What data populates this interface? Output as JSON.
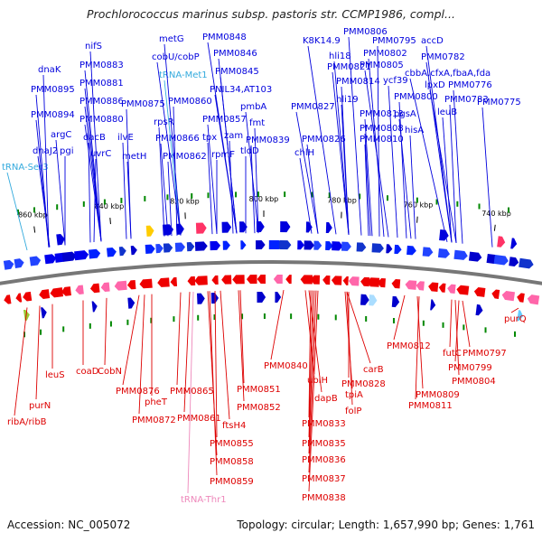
{
  "title": "Prochlorococcus marinus subsp. pastoris str. CCMP1986, compl...",
  "accession": "Accession: NC_005072",
  "summary": "Topology: circular; Length: 1,657,990 bp; Genes: 1,761",
  "colors": {
    "forward": "#0000dd",
    "reverse": "#dd0000",
    "trna": "#33aadd",
    "trna_rev": "#ee88bb",
    "ring": "#777777",
    "feature": "#008800"
  },
  "ticks": [
    "860 kbp",
    "840 kbp",
    "820 kbp",
    "800 kbp",
    "780 kbp",
    "760 kbp",
    "740 kbp"
  ],
  "forward_labels": [
    "tRNA-Ser3",
    "dnaJ2",
    "pgi",
    "argC",
    "PMM0894",
    "PMM0895",
    "dnaK",
    "dacB",
    "uvrC",
    "PMM0880",
    "PMM0886",
    "PMM0881",
    "PMM0883",
    "nifS",
    "ilvE",
    "metH",
    "PMM0875",
    "rpsR",
    "PMM0866",
    "PMM0862",
    "PMM0860",
    "tRNA-Met1",
    "cobU/cobP",
    "metG",
    "tpx",
    "rpmF",
    "PMM0857",
    "zam",
    "tldD",
    "PMM0839",
    "fmt",
    "pmbA",
    "PNIL34,AT103",
    "PMM0845",
    "PMM0846",
    "PMM0848",
    "chlH",
    "PMM0826",
    "PMM0827",
    "PMM0810",
    "PMM0808",
    "PMM0813",
    "hli19",
    "PMM0814",
    "PMM0821",
    "hli18",
    "K8K14.9",
    "hisA",
    "pgsA",
    "PMM0800",
    "ycf39",
    "PMM0805",
    "PMM0802",
    "PMM0806",
    "PMM0795",
    "leuB",
    "PMM0783",
    "PMM0776",
    "lpxD",
    "cbbA,cfxA,fbaA,fda",
    "PMM0782",
    "accD",
    "PMM0775"
  ],
  "reverse_labels": [
    "ribA/ribB",
    "purN",
    "leuS",
    "coaD",
    "CobN",
    "PMM0876",
    "pheT",
    "PMM0872",
    "PMM0865",
    "PMM0861",
    "tRNA-Thr1",
    "PMM0858",
    "PMM0859",
    "PMM0855",
    "ftsH4",
    "PMM0852",
    "PMM0851",
    "PMM0840",
    "ubiH",
    "dapB",
    "PMM0833",
    "PMM0835",
    "PMM0836",
    "PMM0837",
    "PMM0838",
    "tpiA",
    "folP",
    "PMM0828",
    "carB",
    "PMM0812",
    "PMM0809",
    "PMM0811",
    "futC",
    "PMM0804",
    "PMM0799",
    "PMM0797",
    "purQ"
  ]
}
